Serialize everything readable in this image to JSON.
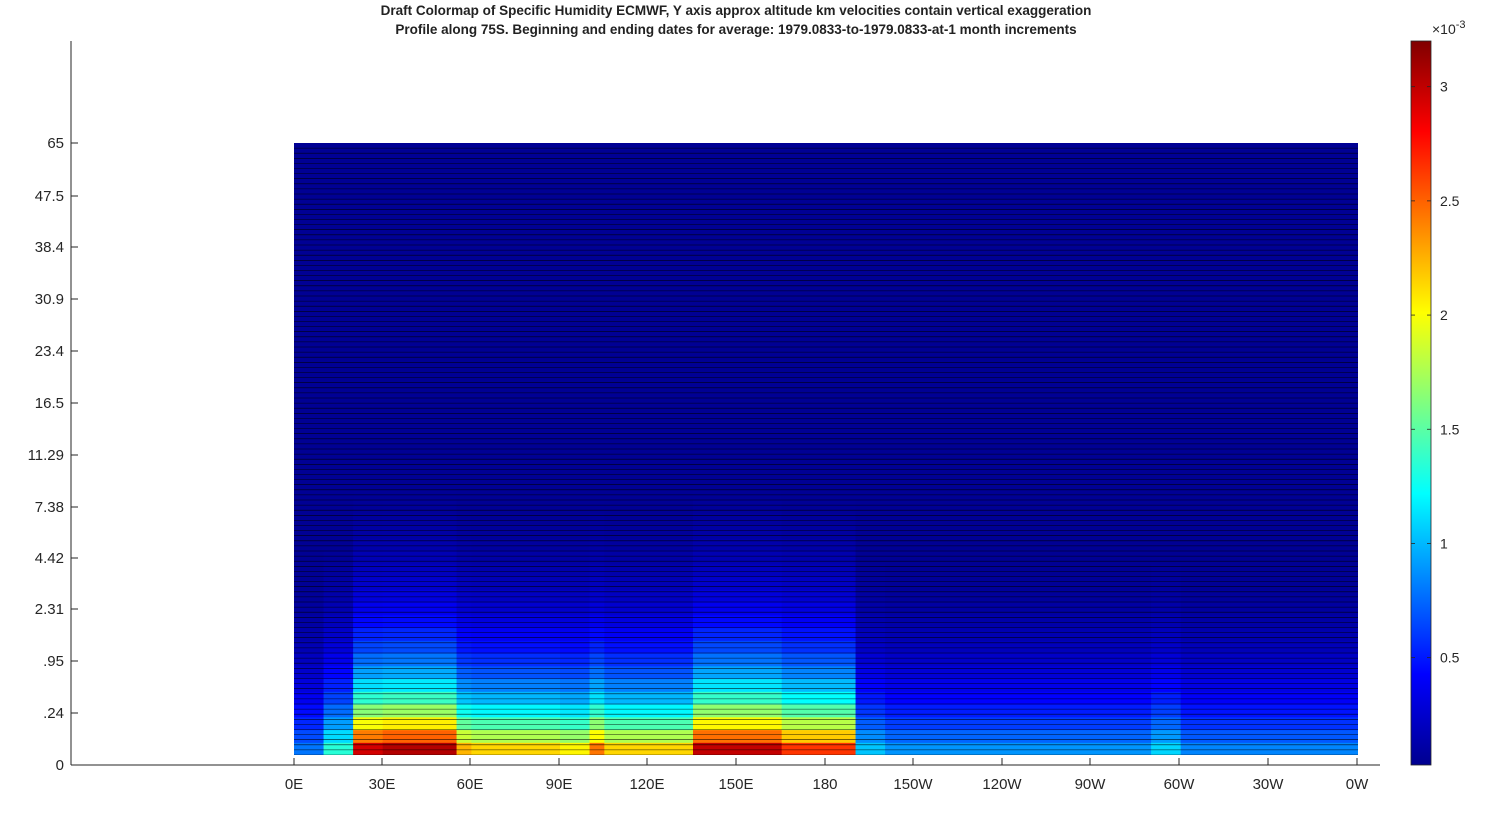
{
  "chart_data": {
    "type": "heatmap",
    "title": [
      "Draft Colormap of Specific Humidity ECMWF, Y axis approx altitude km   velocities contain vertical exaggeration",
      "Profile along 75S. Beginning and ending dates for average:  1979.0833-to-1979.0833-at-1 month increments"
    ],
    "xlabel": "",
    "ylabel": "",
    "x_ticks": [
      "0E",
      "30E",
      "60E",
      "90E",
      "120E",
      "150E",
      "180",
      "150W",
      "120W",
      "90W",
      "60W",
      "30W",
      "0W"
    ],
    "y_ticks": [
      "0",
      ".24",
      ".95",
      "2.31",
      "4.42",
      "7.38",
      "11.29",
      "16.5",
      "23.4",
      "30.9",
      "38.4",
      "47.5",
      "65"
    ],
    "colorbar": {
      "colormap": "jet",
      "range": [
        3e-05,
        0.0032
      ],
      "ticks": [
        "0.5",
        "1",
        "1.5",
        "2",
        "2.5",
        "3"
      ],
      "tick_values": [
        0.5,
        1.0,
        1.5,
        2.0,
        2.5,
        3.0
      ],
      "exponent_label": "×10",
      "exponent_power": "-3",
      "min": 0.03,
      "max": 3.2
    },
    "humidity_columns": [
      {
        "lon_start": 0,
        "lon_end": 10,
        "surface": 0.75
      },
      {
        "lon_start": 10,
        "lon_end": 20,
        "surface": 1.3
      },
      {
        "lon_start": 20,
        "lon_end": 30,
        "surface": 2.9
      },
      {
        "lon_start": 30,
        "lon_end": 55,
        "surface": 3.0
      },
      {
        "lon_start": 55,
        "lon_end": 60,
        "surface": 2.2
      },
      {
        "lon_start": 60,
        "lon_end": 90,
        "surface": 2.1
      },
      {
        "lon_start": 90,
        "lon_end": 100,
        "surface": 2.0
      },
      {
        "lon_start": 100,
        "lon_end": 105,
        "surface": 2.4
      },
      {
        "lon_start": 105,
        "lon_end": 135,
        "surface": 2.1
      },
      {
        "lon_start": 135,
        "lon_end": 165,
        "surface": 2.95
      },
      {
        "lon_start": 165,
        "lon_end": 190,
        "surface": 2.6
      },
      {
        "lon_start": 190,
        "lon_end": 200,
        "surface": 1.0
      },
      {
        "lon_start": 200,
        "lon_end": 290,
        "surface": 0.85
      },
      {
        "lon_start": 290,
        "lon_end": 300,
        "surface": 1.05
      },
      {
        "lon_start": 300,
        "lon_end": 360,
        "surface": 0.8
      }
    ]
  }
}
